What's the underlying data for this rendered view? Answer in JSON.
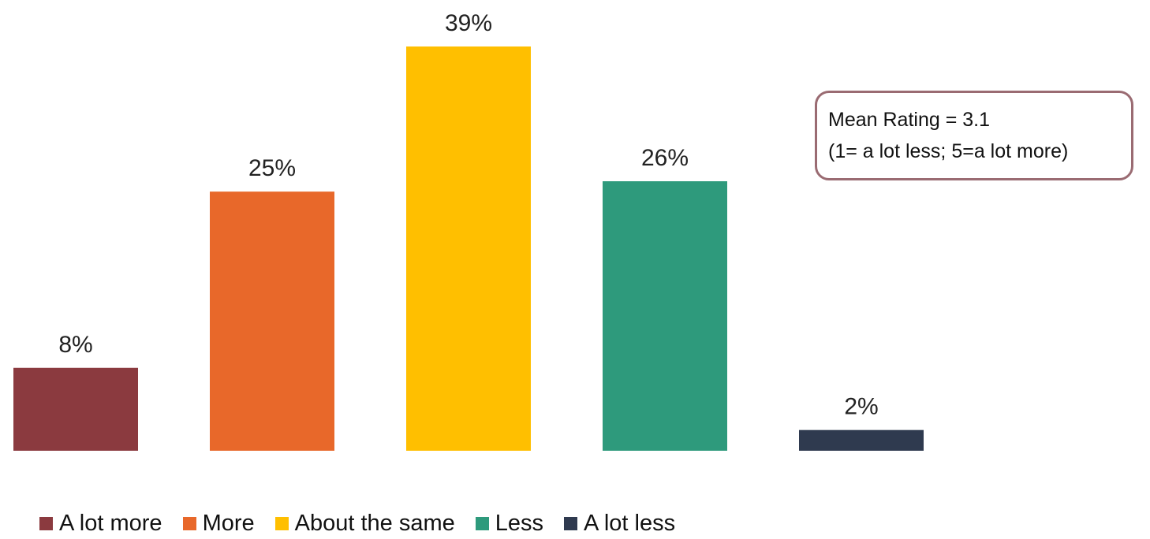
{
  "chart_data": {
    "type": "bar",
    "categories": [
      "A lot more",
      "More",
      "About the same",
      "Less",
      "A lot less"
    ],
    "values": [
      8,
      25,
      39,
      26,
      2
    ],
    "value_labels": [
      "8%",
      "25%",
      "39%",
      "26%",
      "2%"
    ],
    "colors": [
      "#8b3a3f",
      "#e8682a",
      "#ffbf00",
      "#2e9a7c",
      "#2f3a4f"
    ],
    "ylim": [
      0,
      40
    ],
    "grid": false,
    "legend": "bottom",
    "title": "",
    "xlabel": "",
    "ylabel": ""
  },
  "note": {
    "line1": "Mean Rating = 3.1",
    "line2": "(1= a lot less; 5=a lot more)"
  },
  "legend": {
    "items": [
      {
        "label": "A lot more",
        "color": "#8b3a3f"
      },
      {
        "label": "More",
        "color": "#e8682a"
      },
      {
        "label": "About the same",
        "color": "#ffbf00"
      },
      {
        "label": "Less",
        "color": "#2e9a7c"
      },
      {
        "label": "A lot less",
        "color": "#2f3a4f"
      }
    ]
  }
}
